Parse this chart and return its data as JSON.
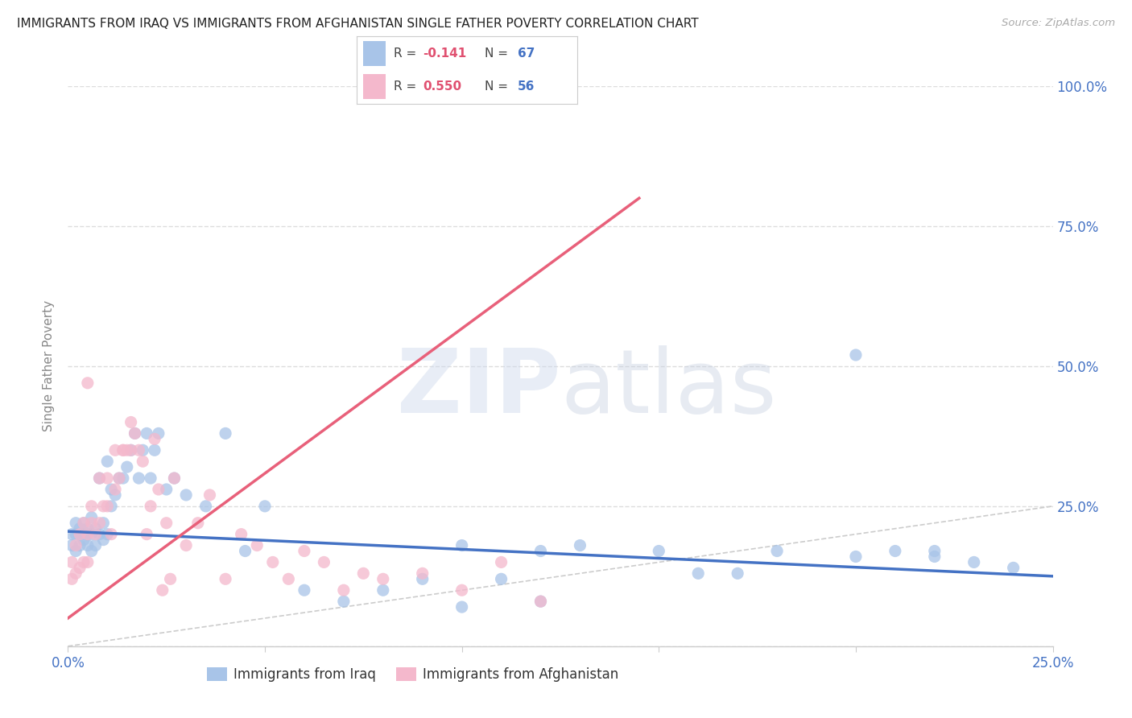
{
  "title": "IMMIGRANTS FROM IRAQ VS IMMIGRANTS FROM AFGHANISTAN SINGLE FATHER POVERTY CORRELATION CHART",
  "source": "Source: ZipAtlas.com",
  "ylabel": "Single Father Poverty",
  "xlim": [
    0.0,
    0.25
  ],
  "ylim": [
    0.0,
    1.0
  ],
  "iraq_color": "#a8c4e8",
  "afghanistan_color": "#f4b8cc",
  "iraq_line_color": "#4472c4",
  "afghanistan_line_color": "#e8607a",
  "diag_line_color": "#cccccc",
  "background_color": "#ffffff",
  "grid_color": "#dddddd",
  "title_color": "#222222",
  "axis_label_color": "#888888",
  "tick_color": "#4472c4",
  "iraq_line_x0": 0.0,
  "iraq_line_y0": 0.205,
  "iraq_line_x1": 0.25,
  "iraq_line_y1": 0.125,
  "afg_line_x0": 0.0,
  "afg_line_y0": 0.05,
  "afg_line_x1": 0.145,
  "afg_line_y1": 0.8,
  "iraq_x": [
    0.001,
    0.001,
    0.002,
    0.002,
    0.002,
    0.003,
    0.003,
    0.003,
    0.004,
    0.004,
    0.004,
    0.005,
    0.005,
    0.005,
    0.006,
    0.006,
    0.006,
    0.007,
    0.007,
    0.008,
    0.008,
    0.009,
    0.009,
    0.01,
    0.01,
    0.011,
    0.011,
    0.012,
    0.013,
    0.014,
    0.015,
    0.016,
    0.017,
    0.018,
    0.019,
    0.02,
    0.021,
    0.022,
    0.023,
    0.025,
    0.027,
    0.03,
    0.035,
    0.04,
    0.045,
    0.05,
    0.06,
    0.07,
    0.08,
    0.09,
    0.1,
    0.11,
    0.12,
    0.13,
    0.15,
    0.16,
    0.17,
    0.18,
    0.2,
    0.21,
    0.22,
    0.23,
    0.24,
    0.1,
    0.12,
    0.2,
    0.22
  ],
  "iraq_y": [
    0.18,
    0.2,
    0.17,
    0.2,
    0.22,
    0.18,
    0.2,
    0.21,
    0.19,
    0.2,
    0.22,
    0.18,
    0.2,
    0.21,
    0.17,
    0.2,
    0.23,
    0.18,
    0.21,
    0.2,
    0.3,
    0.19,
    0.22,
    0.2,
    0.33,
    0.25,
    0.28,
    0.27,
    0.3,
    0.3,
    0.32,
    0.35,
    0.38,
    0.3,
    0.35,
    0.38,
    0.3,
    0.35,
    0.38,
    0.28,
    0.3,
    0.27,
    0.25,
    0.38,
    0.17,
    0.25,
    0.1,
    0.08,
    0.1,
    0.12,
    0.18,
    0.12,
    0.08,
    0.18,
    0.17,
    0.13,
    0.13,
    0.17,
    0.16,
    0.17,
    0.16,
    0.15,
    0.14,
    0.07,
    0.17,
    0.52,
    0.17
  ],
  "afghanistan_x": [
    0.001,
    0.001,
    0.002,
    0.002,
    0.003,
    0.003,
    0.004,
    0.004,
    0.005,
    0.005,
    0.006,
    0.006,
    0.007,
    0.008,
    0.009,
    0.01,
    0.011,
    0.012,
    0.013,
    0.014,
    0.015,
    0.016,
    0.017,
    0.018,
    0.019,
    0.02,
    0.021,
    0.022,
    0.023,
    0.025,
    0.027,
    0.03,
    0.033,
    0.036,
    0.04,
    0.044,
    0.048,
    0.052,
    0.056,
    0.06,
    0.065,
    0.07,
    0.075,
    0.08,
    0.09,
    0.1,
    0.11,
    0.12,
    0.024,
    0.026,
    0.005,
    0.008,
    0.01,
    0.012,
    0.014,
    0.016
  ],
  "afghanistan_y": [
    0.12,
    0.15,
    0.13,
    0.18,
    0.14,
    0.2,
    0.15,
    0.22,
    0.15,
    0.2,
    0.22,
    0.25,
    0.2,
    0.22,
    0.25,
    0.25,
    0.2,
    0.35,
    0.3,
    0.35,
    0.35,
    0.4,
    0.38,
    0.35,
    0.33,
    0.2,
    0.25,
    0.37,
    0.28,
    0.22,
    0.3,
    0.18,
    0.22,
    0.27,
    0.12,
    0.2,
    0.18,
    0.15,
    0.12,
    0.17,
    0.15,
    0.1,
    0.13,
    0.12,
    0.13,
    0.1,
    0.15,
    0.08,
    0.1,
    0.12,
    0.47,
    0.3,
    0.3,
    0.28,
    0.35,
    0.35
  ]
}
